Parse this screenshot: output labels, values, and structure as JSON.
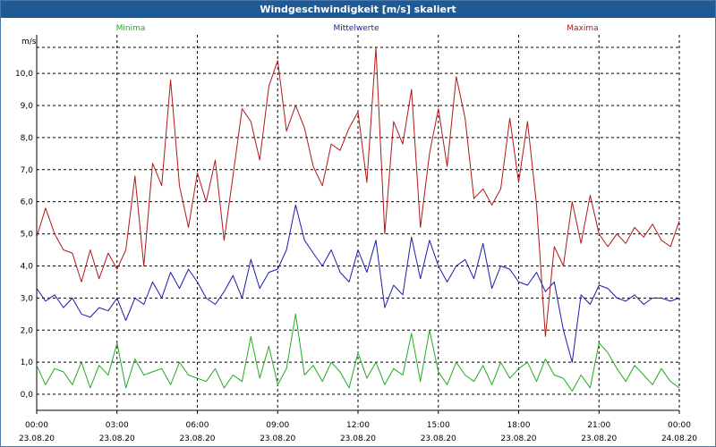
{
  "window": {
    "title": "Windgeschwindigkeit [m/s] skaliert"
  },
  "chart_data": {
    "type": "line",
    "title": "Windgeschwindigkeit [m/s] skaliert",
    "ylabel": "m/s",
    "ylim": [
      -0.5,
      11.2
    ],
    "xlim": [
      0,
      24
    ],
    "grid": true,
    "legend_position": "top",
    "y_ticks": [
      0,
      1,
      2,
      3,
      4,
      5,
      6,
      7,
      8,
      9,
      10
    ],
    "y_tick_labels": [
      "0,0",
      "1,0",
      "2,0",
      "3,0",
      "4,0",
      "5,0",
      "6,0",
      "7,0",
      "8,0",
      "9,0",
      "10,0"
    ],
    "x_ticks": [
      0,
      3,
      6,
      9,
      12,
      15,
      18,
      21,
      24
    ],
    "x_tick_labels": [
      {
        "time": "00:00",
        "date": "23.08.20"
      },
      {
        "time": "03:00",
        "date": "23.08.20"
      },
      {
        "time": "06:00",
        "date": "23.08.20"
      },
      {
        "time": "09:00",
        "date": "23.08.20"
      },
      {
        "time": "12:00",
        "date": "23.08.20"
      },
      {
        "time": "15:00",
        "date": "23.08.20"
      },
      {
        "time": "18:00",
        "date": "23.08.20"
      },
      {
        "time": "21:00",
        "date": "23.08.20"
      },
      {
        "time": "00:00",
        "date": "24.08.20"
      }
    ],
    "series": [
      {
        "name": "Minima",
        "color": "#22aa22",
        "x": [
          0,
          0.33,
          0.67,
          1,
          1.33,
          1.67,
          2,
          2.33,
          2.67,
          3,
          3.33,
          3.67,
          4,
          4.33,
          4.67,
          5,
          5.33,
          5.67,
          6,
          6.33,
          6.67,
          7,
          7.33,
          7.67,
          8,
          8.33,
          8.67,
          9,
          9.33,
          9.67,
          10,
          10.33,
          10.67,
          11,
          11.33,
          11.67,
          12,
          12.33,
          12.67,
          13,
          13.33,
          13.67,
          14,
          14.33,
          14.67,
          15,
          15.33,
          15.67,
          16,
          16.33,
          16.67,
          17,
          17.33,
          17.67,
          18,
          18.33,
          18.67,
          19,
          19.33,
          19.67,
          20,
          20.33,
          20.67,
          21,
          21.33,
          21.67,
          22,
          22.33,
          22.67,
          23,
          23.33,
          23.67,
          24
        ],
        "values": [
          0.9,
          0.3,
          0.8,
          0.7,
          0.3,
          1.0,
          0.2,
          0.9,
          0.6,
          1.6,
          0.2,
          1.1,
          0.6,
          0.7,
          0.8,
          0.3,
          1.0,
          0.6,
          0.5,
          0.4,
          0.8,
          0.2,
          0.6,
          0.4,
          1.8,
          0.5,
          1.5,
          0.3,
          0.8,
          2.5,
          0.6,
          0.9,
          0.4,
          1.0,
          0.7,
          0.2,
          1.3,
          0.5,
          1.0,
          0.3,
          0.8,
          0.6,
          1.9,
          0.4,
          2.0,
          0.7,
          0.3,
          1.0,
          0.6,
          0.4,
          0.9,
          0.3,
          1.0,
          0.5,
          0.8,
          1.0,
          0.4,
          1.1,
          0.6,
          0.5,
          0.1,
          0.6,
          0.2,
          1.6,
          1.3,
          0.8,
          0.4,
          0.9,
          0.6,
          0.3,
          0.8,
          0.4,
          0.2
        ]
      },
      {
        "name": "Mittelwerte",
        "color": "#1a1aaa",
        "x": [
          0,
          0.33,
          0.67,
          1,
          1.33,
          1.67,
          2,
          2.33,
          2.67,
          3,
          3.33,
          3.67,
          4,
          4.33,
          4.67,
          5,
          5.33,
          5.67,
          6,
          6.33,
          6.67,
          7,
          7.33,
          7.67,
          8,
          8.33,
          8.67,
          9,
          9.33,
          9.67,
          10,
          10.33,
          10.67,
          11,
          11.33,
          11.67,
          12,
          12.33,
          12.67,
          13,
          13.33,
          13.67,
          14,
          14.33,
          14.67,
          15,
          15.33,
          15.67,
          16,
          16.33,
          16.67,
          17,
          17.33,
          17.67,
          18,
          18.33,
          18.67,
          19,
          19.33,
          19.67,
          20,
          20.33,
          20.67,
          21,
          21.33,
          21.67,
          22,
          22.33,
          22.67,
          23,
          23.33,
          23.67,
          24
        ],
        "values": [
          3.3,
          2.9,
          3.1,
          2.7,
          3.0,
          2.5,
          2.4,
          2.7,
          2.6,
          3.0,
          2.3,
          3.0,
          2.8,
          3.5,
          3.0,
          3.8,
          3.3,
          3.9,
          3.5,
          3.0,
          2.8,
          3.2,
          3.7,
          3.0,
          4.2,
          3.3,
          3.8,
          3.9,
          4.5,
          5.9,
          4.8,
          4.4,
          4.0,
          4.5,
          3.8,
          3.5,
          4.5,
          3.8,
          4.8,
          2.7,
          3.4,
          3.1,
          4.9,
          3.6,
          4.8,
          4.0,
          3.5,
          4.0,
          4.2,
          3.6,
          4.7,
          3.3,
          4.0,
          3.9,
          3.5,
          3.4,
          3.8,
          3.2,
          3.5,
          2.0,
          1.0,
          3.1,
          2.8,
          3.4,
          3.3,
          3.0,
          2.9,
          3.1,
          2.8,
          3.0,
          3.0,
          2.9,
          3.0
        ]
      },
      {
        "name": "Maxima",
        "color": "#b01818",
        "x": [
          0,
          0.33,
          0.67,
          1,
          1.33,
          1.67,
          2,
          2.33,
          2.67,
          3,
          3.33,
          3.67,
          4,
          4.33,
          4.67,
          5,
          5.33,
          5.67,
          6,
          6.33,
          6.67,
          7,
          7.33,
          7.67,
          8,
          8.33,
          8.67,
          9,
          9.33,
          9.67,
          10,
          10.33,
          10.67,
          11,
          11.33,
          11.67,
          12,
          12.33,
          12.67,
          13,
          13.33,
          13.67,
          14,
          14.33,
          14.67,
          15,
          15.33,
          15.67,
          16,
          16.33,
          16.67,
          17,
          17.33,
          17.67,
          18,
          18.33,
          18.67,
          19,
          19.33,
          19.67,
          20,
          20.33,
          20.67,
          21,
          21.33,
          21.67,
          22,
          22.33,
          22.67,
          23,
          23.33,
          23.67,
          24
        ],
        "values": [
          4.9,
          5.8,
          5.0,
          4.5,
          4.4,
          3.5,
          4.5,
          3.6,
          4.4,
          3.9,
          4.5,
          6.8,
          4.0,
          7.2,
          6.5,
          9.8,
          6.5,
          5.2,
          6.9,
          6.0,
          7.3,
          4.8,
          6.8,
          8.9,
          8.5,
          7.3,
          9.6,
          10.4,
          8.2,
          9.0,
          8.3,
          7.1,
          6.5,
          7.8,
          7.6,
          8.3,
          8.8,
          6.6,
          10.8,
          5.0,
          8.5,
          7.8,
          9.5,
          5.2,
          7.5,
          8.9,
          7.1,
          9.9,
          8.6,
          6.1,
          6.4,
          5.9,
          6.4,
          8.6,
          6.6,
          8.5,
          5.9,
          1.8,
          4.6,
          4.0,
          6.0,
          4.7,
          6.2,
          5.0,
          4.6,
          5.0,
          4.7,
          5.2,
          4.9,
          5.3,
          4.8,
          4.6,
          5.4
        ]
      }
    ]
  }
}
